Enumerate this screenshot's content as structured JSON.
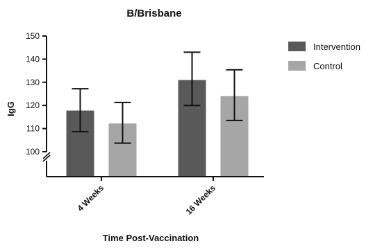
{
  "chart_data": {
    "type": "bar",
    "title": "B/Brisbane",
    "xlabel": "Time Post-Vaccination",
    "ylabel": "IgG",
    "categories": [
      "4 Weeks",
      "16 Weeks"
    ],
    "series": [
      {
        "name": "Intervention",
        "color": "#595959",
        "values": [
          117.8,
          131.0
        ],
        "error_low": [
          108.7,
          120.0
        ],
        "error_high": [
          127.2,
          143.0
        ]
      },
      {
        "name": "Control",
        "color": "#a6a6a6",
        "values": [
          112.2,
          124.0
        ],
        "error_low": [
          103.7,
          113.5
        ],
        "error_high": [
          121.3,
          135.4
        ]
      }
    ],
    "ylim": [
      100,
      150
    ],
    "yticks": [
      "100",
      "110",
      "120",
      "130",
      "140",
      "150"
    ],
    "axis_break": true,
    "grid": false,
    "legend": "right"
  }
}
